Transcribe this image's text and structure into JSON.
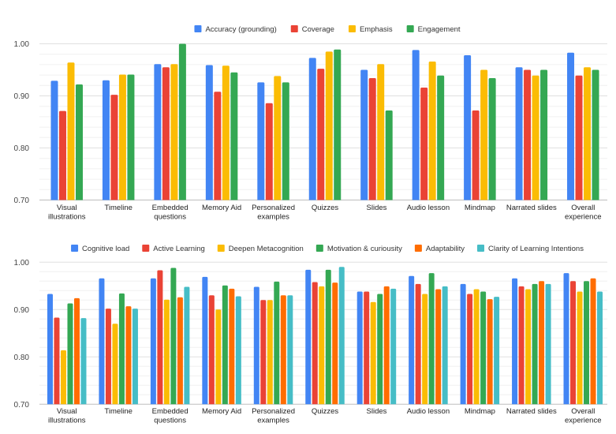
{
  "colors": {
    "blue": "#4285f4",
    "red": "#ea4335",
    "yellow": "#fbbc04",
    "green": "#34a853",
    "orange": "#ff6d01",
    "cyan": "#46bdc6",
    "grid": "#e0e0e0",
    "grid_minor": "#f0f0f0"
  },
  "chart_data": [
    {
      "type": "bar",
      "title": "",
      "xlabel": "",
      "ylabel": "",
      "ylim": [
        0.7,
        1.0
      ],
      "yticks": [
        "0.70",
        "0.80",
        "0.90",
        "1.00"
      ],
      "grid": true,
      "legend_position": "top-center",
      "categories": [
        "Visual illustrations",
        "Timeline",
        "Embedded questions",
        "Memory Aid",
        "Personalized examples",
        "Quizzes",
        "Slides",
        "Audio lesson",
        "Mindmap",
        "Narrated slides",
        "Overall experience"
      ],
      "category_lines": [
        [
          "Visual",
          "illustrations"
        ],
        [
          "Timeline"
        ],
        [
          "Embedded",
          "questions"
        ],
        [
          "Memory Aid"
        ],
        [
          "Personalized",
          "examples"
        ],
        [
          "Quizzes"
        ],
        [
          "Slides"
        ],
        [
          "Audio lesson"
        ],
        [
          "Mindmap"
        ],
        [
          "Narrated slides"
        ],
        [
          "Overall",
          "experience"
        ]
      ],
      "series": [
        {
          "name": "Accuracy (grounding)",
          "color": "#4285f4",
          "values": [
            0.929,
            0.93,
            0.961,
            0.959,
            0.926,
            0.973,
            0.95,
            0.988,
            0.978,
            0.955,
            0.983
          ]
        },
        {
          "name": "Coverage",
          "color": "#ea4335",
          "values": [
            0.871,
            0.902,
            0.955,
            0.908,
            0.886,
            0.952,
            0.934,
            0.916,
            0.872,
            0.95,
            0.939
          ]
        },
        {
          "name": "Emphasis",
          "color": "#fbbc04",
          "values": [
            0.964,
            0.941,
            0.961,
            0.958,
            0.938,
            0.985,
            0.961,
            0.966,
            0.95,
            0.939,
            0.955
          ]
        },
        {
          "name": "Engagement",
          "color": "#34a853",
          "values": [
            0.922,
            0.941,
            1.0,
            0.945,
            0.926,
            0.989,
            0.872,
            0.939,
            0.934,
            0.95,
            0.95
          ]
        }
      ]
    },
    {
      "type": "bar",
      "title": "",
      "xlabel": "",
      "ylabel": "",
      "ylim": [
        0.7,
        1.0
      ],
      "yticks": [
        "0.70",
        "0.80",
        "0.90",
        "1.00"
      ],
      "grid": true,
      "legend_position": "top-center",
      "categories": [
        "Visual illustrations",
        "Timeline",
        "Embedded questions",
        "Memory Aid",
        "Personalized examples",
        "Quizzes",
        "Slides",
        "Audio lesson",
        "Mindmap",
        "Narrated slides",
        "Overall experience"
      ],
      "category_lines": [
        [
          "Visual",
          "illustrations"
        ],
        [
          "Timeline"
        ],
        [
          "Embedded",
          "questions"
        ],
        [
          "Memory Aid"
        ],
        [
          "Personalized",
          "examples"
        ],
        [
          "Quizzes"
        ],
        [
          "Slides"
        ],
        [
          "Audio lesson"
        ],
        [
          "Mindmap"
        ],
        [
          "Narrated slides"
        ],
        [
          "Overall",
          "experience"
        ]
      ],
      "series": [
        {
          "name": "Cognitive load",
          "color": "#4285f4",
          "values": [
            0.933,
            0.966,
            0.966,
            0.969,
            0.948,
            0.984,
            0.938,
            0.971,
            0.954,
            0.966,
            0.977
          ]
        },
        {
          "name": "Active Learning",
          "color": "#ea4335",
          "values": [
            0.883,
            0.902,
            0.983,
            0.93,
            0.92,
            0.958,
            0.938,
            0.954,
            0.933,
            0.949,
            0.96
          ]
        },
        {
          "name": "Deepen Metacognition",
          "color": "#fbbc04",
          "values": [
            0.814,
            0.87,
            0.921,
            0.9,
            0.92,
            0.949,
            0.916,
            0.933,
            0.943,
            0.943,
            0.938
          ]
        },
        {
          "name": "Motivation & curiousity",
          "color": "#34a853",
          "values": [
            0.913,
            0.934,
            0.988,
            0.951,
            0.959,
            0.984,
            0.933,
            0.977,
            0.938,
            0.954,
            0.96
          ]
        },
        {
          "name": "Adaptability",
          "color": "#ff6d01",
          "values": [
            0.924,
            0.907,
            0.926,
            0.944,
            0.93,
            0.957,
            0.949,
            0.943,
            0.922,
            0.96,
            0.966
          ]
        },
        {
          "name": "Clarity of Learning Intentions",
          "color": "#46bdc6",
          "values": [
            0.882,
            0.902,
            0.948,
            0.928,
            0.93,
            0.99,
            0.944,
            0.949,
            0.927,
            0.954,
            0.938
          ]
        }
      ]
    }
  ]
}
